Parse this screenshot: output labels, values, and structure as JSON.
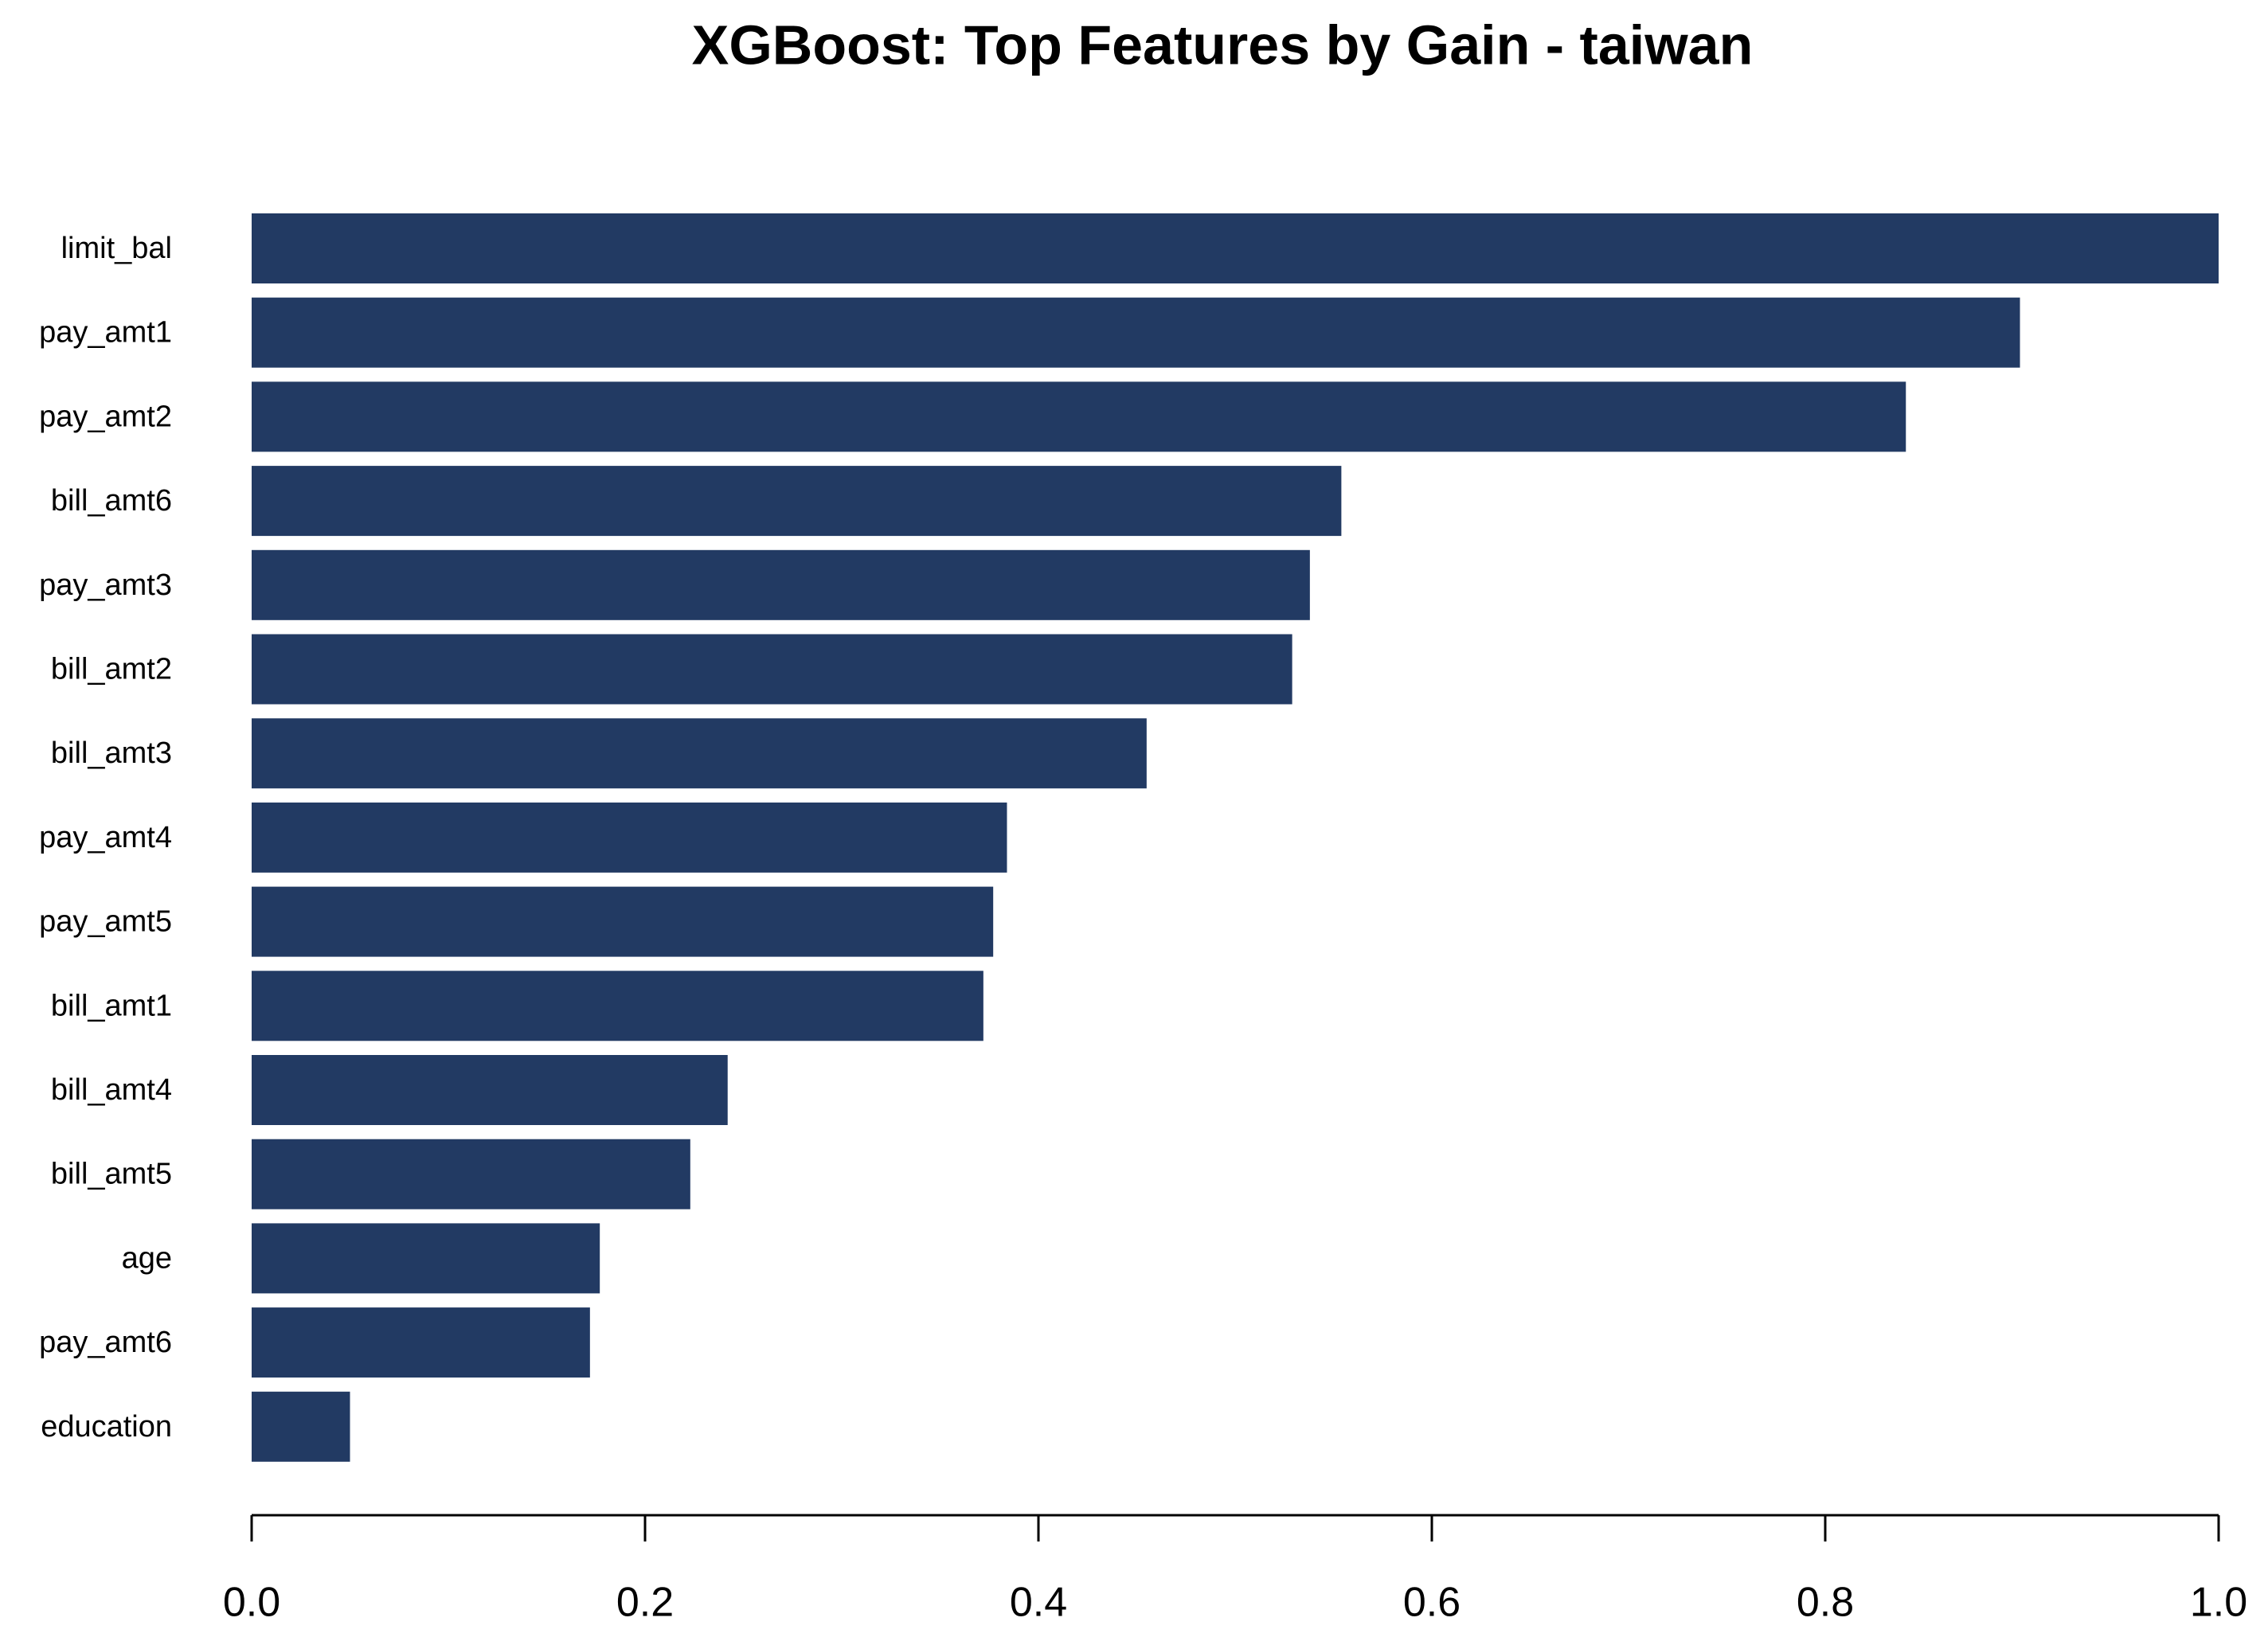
{
  "chart_data": {
    "type": "barh",
    "title": "XGBoost: Top Features by Gain - taiwan",
    "categories": [
      "limit_bal",
      "pay_amt1",
      "pay_amt2",
      "bill_amt6",
      "pay_amt3",
      "bill_amt2",
      "bill_amt3",
      "pay_amt4",
      "pay_amt5",
      "bill_amt1",
      "bill_amt4",
      "bill_amt5",
      "age",
      "pay_amt6",
      "education"
    ],
    "values": [
      1.0,
      0.899,
      0.841,
      0.554,
      0.538,
      0.529,
      0.455,
      0.384,
      0.377,
      0.372,
      0.242,
      0.223,
      0.177,
      0.172,
      0.05
    ],
    "color": "#223a63",
    "xlim": [
      0,
      1
    ],
    "xticks": [
      {
        "value": 0,
        "label": "0.0"
      },
      0.2,
      0.4,
      0.6,
      0.8,
      {
        "value": 1,
        "label": "1.0"
      }
    ]
  }
}
